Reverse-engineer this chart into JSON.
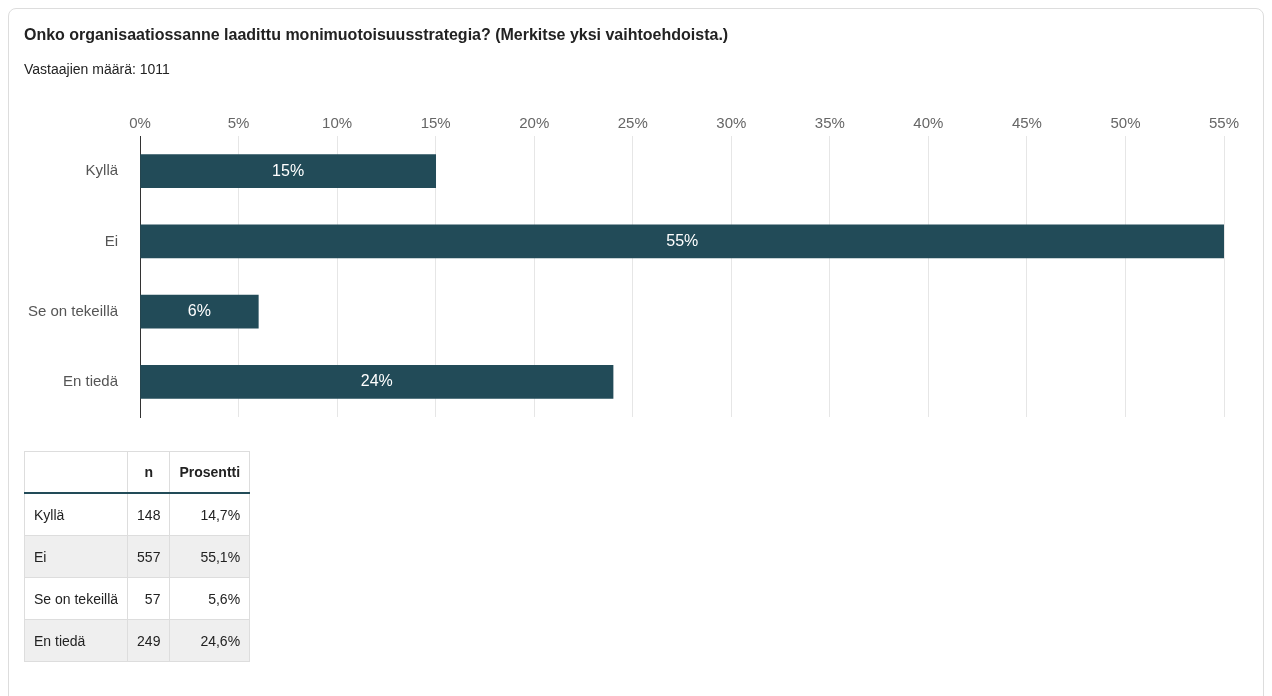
{
  "chart_data": {
    "type": "bar",
    "orientation": "horizontal",
    "title": "Onko organisaatiossanne laadittu monimuotoisuusstrategia? (Merkitse yksi vaihtoehdoista.)",
    "subtitle": "Vastaajien määrä: 1011",
    "categories": [
      "Kyllä",
      "Ei",
      "Se on tekeillä",
      "En tiedä"
    ],
    "values": [
      15,
      55,
      6,
      24
    ],
    "color": "#224b58",
    "data_labels": true,
    "value_labels": [
      "15%",
      "55%",
      "6%",
      "24%"
    ],
    "xlim": [
      0,
      55
    ],
    "xticks": [
      {
        "value": 0,
        "label": "0%"
      },
      {
        "value": 5,
        "label": "5%"
      },
      {
        "value": 10,
        "label": "10%"
      },
      {
        "value": 15,
        "label": "15%"
      },
      {
        "value": 20,
        "label": "20%"
      },
      {
        "value": 25,
        "label": "25%"
      },
      {
        "value": 30,
        "label": "30%"
      },
      {
        "value": 35,
        "label": "35%"
      },
      {
        "value": 40,
        "label": "40%"
      },
      {
        "value": 45,
        "label": "45%"
      },
      {
        "value": 50,
        "label": "50%"
      },
      {
        "value": 55,
        "label": "55%"
      }
    ],
    "grid": "x",
    "annotations": [
      "n",
      "Prosentti",
      "148",
      "14,7%",
      "557",
      "55,1%",
      "57",
      "5,6%",
      "249",
      "24,6%"
    ]
  }
}
